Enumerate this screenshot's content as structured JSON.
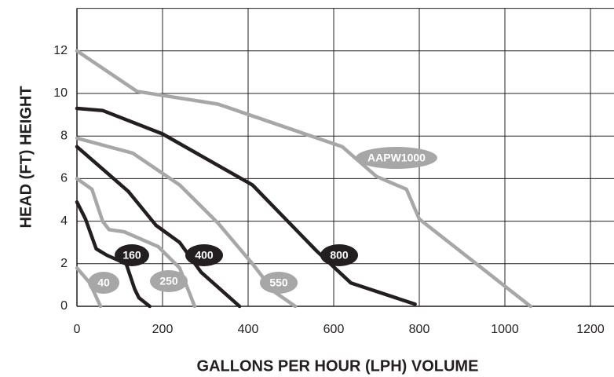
{
  "chart_data": {
    "type": "line",
    "x_label": "GALLONS PER HOUR  (LPH) VOLUME",
    "y_label": "HEAD (FT) HEIGHT",
    "xlim": [
      0,
      1255
    ],
    "ylim": [
      0,
      14
    ],
    "xticks": [
      0,
      200,
      400,
      600,
      800,
      1000,
      1200
    ],
    "yticks": [
      0,
      2,
      4,
      6,
      8,
      10,
      12
    ],
    "grid": true,
    "series": [
      {
        "name": "40",
        "color": "#a7a7a7",
        "x": [
          0,
          30,
          55
        ],
        "values": [
          1.8,
          1.1,
          0
        ]
      },
      {
        "name": "160",
        "color": "#231f20",
        "x": [
          0,
          20,
          45,
          70,
          115,
          135,
          145,
          170
        ],
        "values": [
          4.9,
          4.1,
          2.7,
          2.4,
          2,
          0.8,
          0.4,
          0
        ]
      },
      {
        "name": "250",
        "color": "#a7a7a7",
        "x": [
          0,
          35,
          60,
          75,
          110,
          190,
          240,
          275
        ],
        "values": [
          6,
          5.5,
          4,
          3.6,
          3.5,
          2.8,
          1.8,
          0
        ]
      },
      {
        "name": "400",
        "color": "#231f20",
        "x": [
          0,
          120,
          185,
          240,
          290,
          380
        ],
        "values": [
          7.5,
          5.4,
          3.8,
          3,
          1.6,
          0
        ]
      },
      {
        "name": "550",
        "color": "#a7a7a7",
        "x": [
          0,
          130,
          240,
          330,
          410,
          460,
          510
        ],
        "values": [
          7.9,
          7.2,
          5.7,
          3.9,
          2,
          0.7,
          0
        ]
      },
      {
        "name": "800",
        "color": "#231f20",
        "x": [
          0,
          60,
          200,
          410,
          560,
          640,
          790
        ],
        "values": [
          9.3,
          9.2,
          8.1,
          5.7,
          2.6,
          1.1,
          0.1
        ]
      },
      {
        "name": "AAPW1000",
        "color": "#a7a7a7",
        "x": [
          0,
          140,
          330,
          620,
          700,
          770,
          800,
          1060
        ],
        "values": [
          12,
          10.1,
          9.5,
          7.5,
          6.1,
          5.5,
          4.1,
          0
        ]
      }
    ]
  }
}
